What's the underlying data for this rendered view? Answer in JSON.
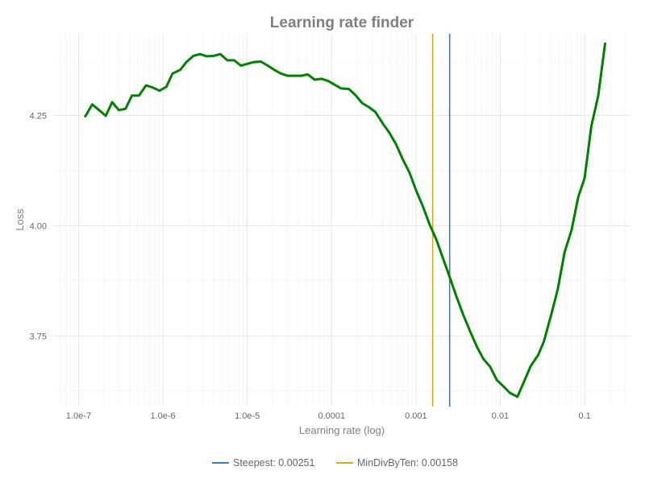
{
  "chart_data": {
    "type": "line",
    "title": "Learning rate finder",
    "xlabel": "Learning rate (log)",
    "ylabel": "Loss",
    "x_scale": "log",
    "xlim": [
      5e-08,
      0.35
    ],
    "ylim": [
      3.59,
      4.435
    ],
    "grid": true,
    "x_ticks": [
      {
        "value": 1e-07,
        "label": "1.0e-7"
      },
      {
        "value": 1e-06,
        "label": "1.0e-6"
      },
      {
        "value": 1e-05,
        "label": "1.0e-5"
      },
      {
        "value": 0.0001,
        "label": "0.0001"
      },
      {
        "value": 0.001,
        "label": "0.001"
      },
      {
        "value": 0.01,
        "label": "0.01"
      },
      {
        "value": 0.1,
        "label": "0.1"
      }
    ],
    "y_ticks": [
      {
        "value": 3.75,
        "label": "3.75"
      },
      {
        "value": 4.0,
        "label": "4.00"
      },
      {
        "value": 4.25,
        "label": "4.25"
      }
    ],
    "series": [
      {
        "color": "#008000",
        "points": [
          [
            1.2e-07,
            4.248
          ],
          [
            1.45e-07,
            4.275
          ],
          [
            1.75e-07,
            4.262
          ],
          [
            2.1e-07,
            4.249
          ],
          [
            2.5e-07,
            4.28
          ],
          [
            3e-07,
            4.262
          ],
          [
            3.6e-07,
            4.265
          ],
          [
            4.3e-07,
            4.295
          ],
          [
            5.2e-07,
            4.295
          ],
          [
            6.3e-07,
            4.318
          ],
          [
            7.6e-07,
            4.313
          ],
          [
            9.1e-07,
            4.306
          ],
          [
            1.1e-06,
            4.315
          ],
          [
            1.3e-06,
            4.345
          ],
          [
            1.6e-06,
            4.353
          ],
          [
            1.9e-06,
            4.371
          ],
          [
            2.3e-06,
            4.385
          ],
          [
            2.75e-06,
            4.389
          ],
          [
            3.3e-06,
            4.384
          ],
          [
            4e-06,
            4.385
          ],
          [
            4.8e-06,
            4.389
          ],
          [
            5.8e-06,
            4.375
          ],
          [
            7e-06,
            4.375
          ],
          [
            8.4e-06,
            4.363
          ],
          [
            1e-05,
            4.367
          ],
          [
            1.2e-05,
            4.371
          ],
          [
            1.45e-05,
            4.372
          ],
          [
            1.75e-05,
            4.363
          ],
          [
            2.1e-05,
            4.353
          ],
          [
            2.5e-05,
            4.345
          ],
          [
            3e-05,
            4.34
          ],
          [
            3.6e-05,
            4.34
          ],
          [
            4.4e-05,
            4.34
          ],
          [
            5.2e-05,
            4.343
          ],
          [
            6.3e-05,
            4.331
          ],
          [
            7.6e-05,
            4.333
          ],
          [
            9.1e-05,
            4.328
          ],
          [
            0.00011,
            4.319
          ],
          [
            0.00013,
            4.311
          ],
          [
            0.00016,
            4.31
          ],
          [
            0.00019,
            4.297
          ],
          [
            0.00023,
            4.278
          ],
          [
            0.00028,
            4.268
          ],
          [
            0.00033,
            4.258
          ],
          [
            0.0004,
            4.233
          ],
          [
            0.00048,
            4.212
          ],
          [
            0.00058,
            4.185
          ],
          [
            0.0007,
            4.15
          ],
          [
            0.00084,
            4.12
          ],
          [
            0.001,
            4.081
          ],
          [
            0.0012,
            4.045
          ],
          [
            0.00145,
            4.003
          ],
          [
            0.00175,
            3.968
          ],
          [
            0.0021,
            3.925
          ],
          [
            0.0025,
            3.885
          ],
          [
            0.003,
            3.841
          ],
          [
            0.0036,
            3.8
          ],
          [
            0.0044,
            3.76
          ],
          [
            0.0053,
            3.725
          ],
          [
            0.0063,
            3.698
          ],
          [
            0.0076,
            3.68
          ],
          [
            0.0091,
            3.65
          ],
          [
            0.011,
            3.635
          ],
          [
            0.013,
            3.621
          ],
          [
            0.016,
            3.612
          ],
          [
            0.019,
            3.645
          ],
          [
            0.023,
            3.682
          ],
          [
            0.028,
            3.706
          ],
          [
            0.033,
            3.738
          ],
          [
            0.04,
            3.797
          ],
          [
            0.048,
            3.855
          ],
          [
            0.058,
            3.94
          ],
          [
            0.07,
            3.99
          ],
          [
            0.084,
            4.065
          ],
          [
            0.1,
            4.108
          ],
          [
            0.12,
            4.225
          ],
          [
            0.145,
            4.295
          ],
          [
            0.175,
            4.413
          ]
        ]
      }
    ],
    "vlines": [
      {
        "name": "Steepest: 0.00251",
        "value": 0.00251,
        "color": "#2f7fc1"
      },
      {
        "name": "MinDivByTen: 0.00158",
        "value": 0.00158,
        "color": "#d9a522"
      }
    ],
    "legend_position": "bottom"
  }
}
